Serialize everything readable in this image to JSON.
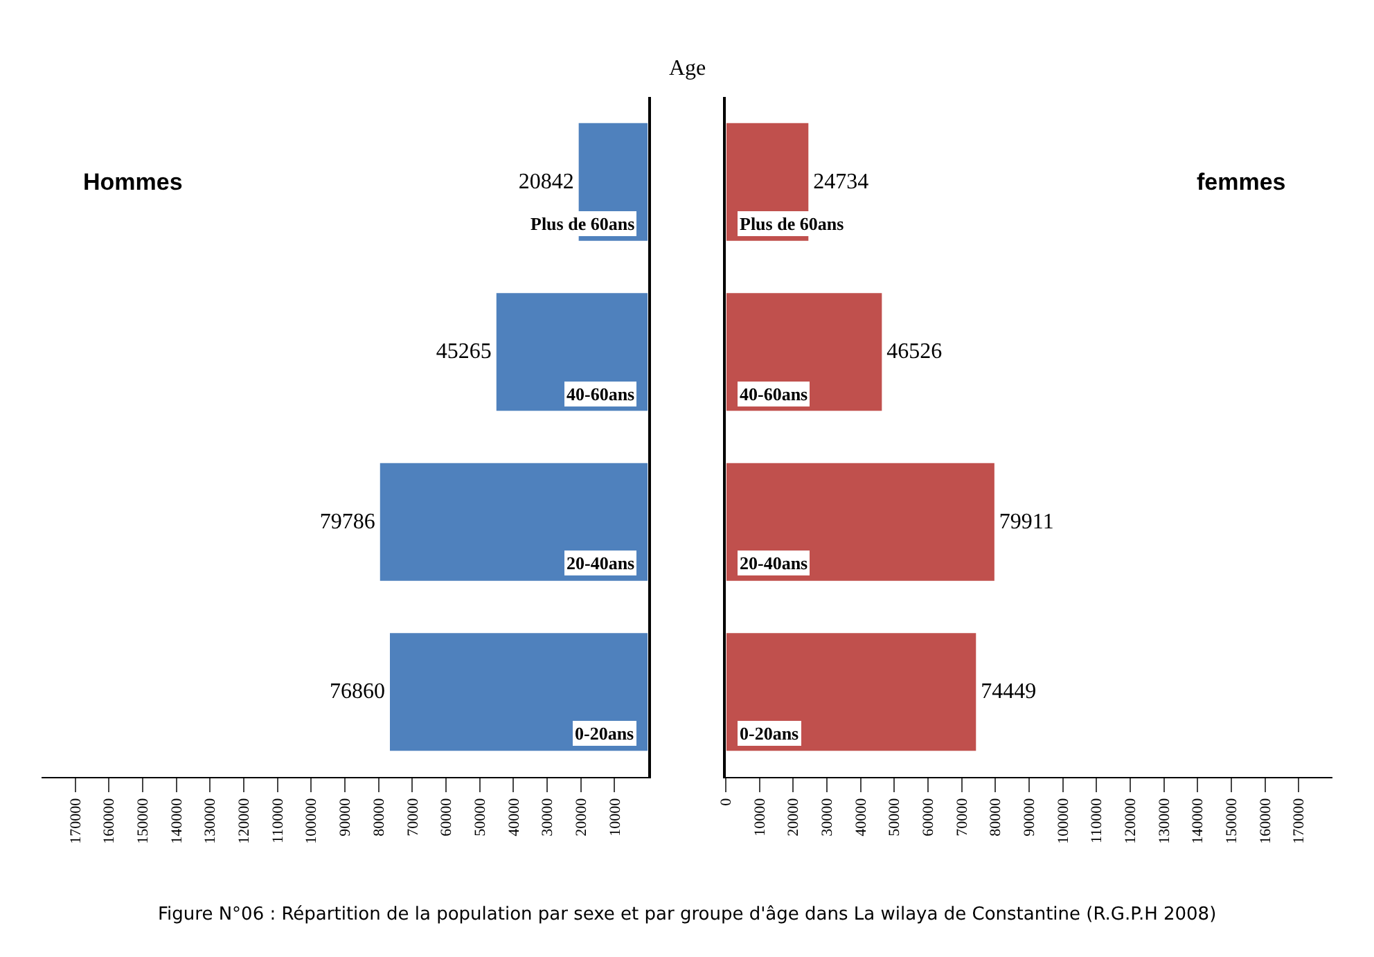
{
  "chart_data": [
    {
      "type": "bar",
      "orientation": "horizontal",
      "ylabel": "Age",
      "categories": [
        "Plus de 60ans",
        "40-60ans",
        "20-40ans",
        "0-20ans"
      ],
      "series": [
        {
          "name": "Hommes",
          "color": "#4f81bd",
          "values": [
            20842,
            45265,
            79786,
            76860
          ]
        }
      ],
      "data_labels": true,
      "xlim": [
        180000,
        0
      ],
      "xticks": [
        170000,
        160000,
        150000,
        140000,
        130000,
        120000,
        110000,
        100000,
        90000,
        80000,
        70000,
        60000,
        50000,
        40000,
        30000,
        20000,
        10000
      ],
      "legend": false,
      "annotations": [
        "Figure N°06 : Répartition de la population par sexe et par groupe d'âge dans La wilaya de Constantine (R.G.P.H 2008)"
      ]
    },
    {
      "type": "bar",
      "orientation": "horizontal",
      "categories": [
        "Plus de 60ans",
        "40-60ans",
        "20-40ans",
        "0-20ans"
      ],
      "series": [
        {
          "name": "femmes",
          "color": "#c0504d",
          "values": [
            24734,
            46526,
            79911,
            74449
          ]
        }
      ],
      "data_labels": true,
      "xlim": [
        0,
        180000
      ],
      "xticks": [
        0,
        10000,
        20000,
        30000,
        40000,
        50000,
        60000,
        70000,
        80000,
        90000,
        100000,
        110000,
        120000,
        130000,
        140000,
        150000,
        160000,
        170000
      ],
      "legend": false
    }
  ]
}
